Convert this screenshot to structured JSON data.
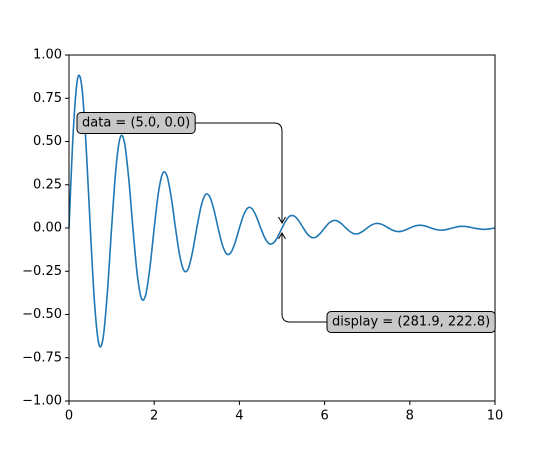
{
  "chart_data": {
    "type": "line",
    "x": [
      0,
      0.1,
      0.2,
      0.3,
      0.4,
      0.5,
      0.6,
      0.7,
      0.8,
      0.9,
      1,
      1.1,
      1.2,
      1.3,
      1.4,
      1.5,
      1.6,
      1.7,
      1.8,
      1.9,
      2,
      2.1,
      2.2,
      2.3,
      2.4,
      2.5,
      2.6,
      2.7,
      2.8,
      2.9,
      3,
      3.1,
      3.2,
      3.3,
      3.4,
      3.5,
      3.6,
      3.7,
      3.8,
      3.9,
      4,
      4.1,
      4.2,
      4.3,
      4.4,
      4.5,
      4.6,
      4.7,
      4.8,
      4.9,
      5,
      5.1,
      5.2,
      5.3,
      5.4,
      5.5,
      5.6,
      5.7,
      5.8,
      5.9,
      6,
      6.1,
      6.2,
      6.3,
      6.4,
      6.5,
      6.6,
      6.7,
      6.8,
      6.9,
      7,
      7.1,
      7.2,
      7.3,
      7.4,
      7.5,
      7.6,
      7.7,
      7.8,
      7.9,
      8,
      8.1,
      8.2,
      8.3,
      8.4,
      8.5,
      8.6,
      8.7,
      8.8,
      8.9,
      9,
      9.1,
      9.2,
      9.3,
      9.4,
      9.5,
      9.6,
      9.7,
      9.8,
      9.9,
      10
    ],
    "series": [
      {
        "color": "#1f77b4",
        "values": [
          0,
          0.5591,
          0.8606,
          0.8186,
          0.4813,
          0,
          -0.4355,
          -0.6702,
          -0.6375,
          -0.3748,
          0,
          0.3391,
          0.522,
          0.4965,
          0.2919,
          0,
          -0.2641,
          -0.4065,
          -0.3867,
          -0.2273,
          0,
          0.2057,
          0.3166,
          0.3012,
          0.177,
          0,
          -0.1602,
          -0.2466,
          -0.2345,
          -0.1379,
          0,
          0.1248,
          0.192,
          0.1827,
          0.1074,
          0,
          -0.0972,
          -0.1495,
          -0.1423,
          -0.0836,
          0,
          0.0757,
          0.1165,
          0.1108,
          0.0651,
          0,
          -0.0589,
          -0.0907,
          -0.0863,
          -0.0507,
          0,
          0.0459,
          0.0706,
          0.0672,
          0.0395,
          0,
          -0.0357,
          -0.055,
          -0.0523,
          -0.0308,
          0,
          0.0278,
          0.0428,
          0.0408,
          0.024,
          0,
          -0.0217,
          -0.0334,
          -0.0317,
          -0.0187,
          0,
          0.0169,
          0.026,
          0.0247,
          0.0145,
          0,
          -0.0132,
          -0.0202,
          -0.0193,
          -0.0113,
          0,
          0.0102,
          0.0158,
          0.015,
          0.0088,
          0,
          -0.008,
          -0.0123,
          -0.0117,
          -0.0069,
          0,
          0.0062,
          0.0096,
          0.0091,
          0.0053,
          0,
          -0.0048,
          -0.0074,
          -0.0071,
          -0.0042,
          0
        ]
      }
    ],
    "xlim": [
      0,
      10
    ],
    "xticks": [
      0,
      2,
      4,
      6,
      8,
      10
    ],
    "ylim": [
      -1,
      1
    ],
    "yticks": [
      {
        "value": -1,
        "label": "−1.00"
      },
      {
        "value": -0.75,
        "label": "−0.75"
      },
      {
        "value": -0.5,
        "label": "−0.50"
      },
      {
        "value": -0.25,
        "label": "−0.25"
      },
      {
        "value": 0,
        "label": "0.00"
      },
      {
        "value": 0.25,
        "label": "0.25"
      },
      {
        "value": 0.5,
        "label": "0.50"
      },
      {
        "value": 0.75,
        "label": "0.75"
      },
      {
        "value": 1,
        "label": "1.00"
      }
    ],
    "annotations": [
      {
        "text": "data = (5.0, 0.0)",
        "x": 5,
        "y": 0
      },
      {
        "text": "display = (281.9, 222.8)",
        "x": 5,
        "y": 0
      }
    ]
  }
}
